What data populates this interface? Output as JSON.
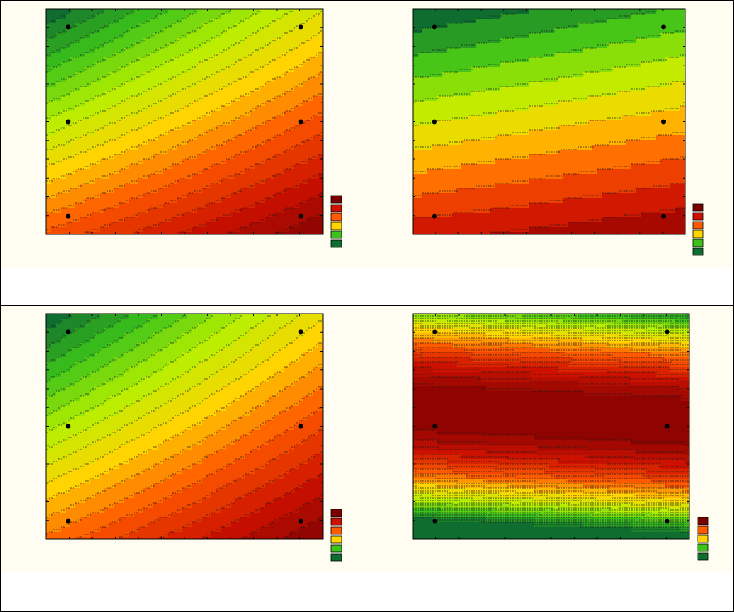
{
  "legend_colors": [
    "#7a0000",
    "#cc1100",
    "#ff5a00",
    "#ffd400",
    "#b6f000",
    "#3cc21a",
    "#0f6d2f"
  ],
  "chart_data": [
    {
      "type": "heatmap",
      "id": "top-left",
      "design_points": [
        [
          0.08,
          0.08
        ],
        [
          0.92,
          0.08
        ],
        [
          0.08,
          0.5
        ],
        [
          0.92,
          0.5
        ],
        [
          0.08,
          0.92
        ],
        [
          0.92,
          0.92
        ]
      ],
      "legend_levels": 6,
      "surface": {
        "vertex_x": -0.1,
        "vertex_y": 0.0,
        "slope": 0.9,
        "curve": 0.55,
        "min": 0.0,
        "max": 1.0
      },
      "contours": 20,
      "title": "",
      "xlabel": "",
      "ylabel": ""
    },
    {
      "type": "heatmap",
      "id": "top-right",
      "design_points": [
        [
          0.08,
          0.08
        ],
        [
          0.92,
          0.08
        ],
        [
          0.08,
          0.5
        ],
        [
          0.92,
          0.5
        ],
        [
          0.08,
          0.92
        ],
        [
          0.92,
          0.92
        ]
      ],
      "legend_levels": 6,
      "surface": {
        "vertex_x": 0.0,
        "vertex_y": 0.0,
        "slope": 0.45,
        "curve": 0.1,
        "min": 0.0,
        "max": 1.0
      },
      "contours": 11,
      "title": "",
      "xlabel": "",
      "ylabel": ""
    },
    {
      "type": "heatmap",
      "id": "bottom-left",
      "design_points": [
        [
          0.08,
          0.08
        ],
        [
          0.92,
          0.08
        ],
        [
          0.08,
          0.5
        ],
        [
          0.92,
          0.5
        ],
        [
          0.08,
          0.92
        ],
        [
          0.92,
          0.92
        ]
      ],
      "legend_levels": 6,
      "surface": {
        "vertex_x": 1.1,
        "vertex_y": 0.4,
        "slope": 0.7,
        "curve": 0.6,
        "min": 0.0,
        "max": 1.0
      },
      "contours": 20,
      "title": "",
      "xlabel": "",
      "ylabel": ""
    },
    {
      "type": "heatmap",
      "id": "bottom-right",
      "design_points": [
        [
          0.08,
          0.08
        ],
        [
          0.92,
          0.08
        ],
        [
          0.08,
          0.5
        ],
        [
          0.92,
          0.5
        ],
        [
          0.08,
          0.92
        ],
        [
          0.92,
          0.92
        ]
      ],
      "legend_levels": 5,
      "surface": {
        "mode": "band",
        "center": 0.45,
        "width": 0.5,
        "tilt": 0.06
      },
      "contours": 24,
      "title": "",
      "xlabel": "",
      "ylabel": ""
    }
  ]
}
